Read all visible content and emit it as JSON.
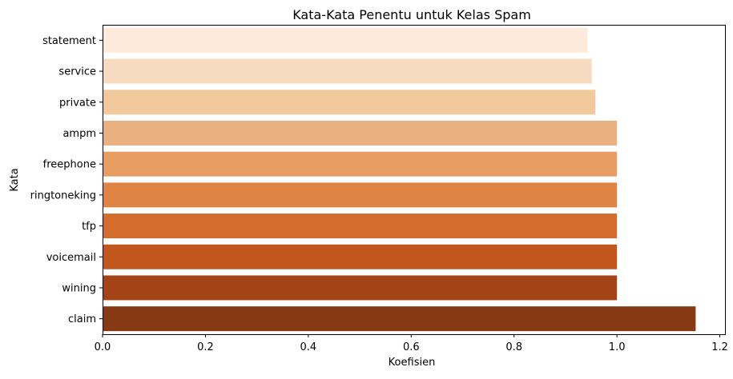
{
  "chart_data": {
    "type": "bar",
    "orientation": "horizontal",
    "title": "Kata-Kata Penentu untuk Kelas Spam",
    "xlabel": "Koefisien",
    "ylabel": "Kata",
    "categories": [
      "statement",
      "service",
      "private",
      "ampm",
      "freephone",
      "ringtoneking",
      "tfp",
      "voicemail",
      "wining",
      "claim"
    ],
    "values": [
      0.943,
      0.951,
      0.958,
      1.0,
      1.0,
      1.0,
      1.0,
      1.0,
      1.0,
      1.153
    ],
    "colors": [
      "#fdeadb",
      "#f6dbc1",
      "#f1c99d",
      "#ebb07f",
      "#e89d63",
      "#e08446",
      "#d46c2d",
      "#c2571e",
      "#a44316",
      "#873913"
    ],
    "xlim": [
      0,
      1.21
    ],
    "xticks": [
      0.0,
      0.2,
      0.4,
      0.6,
      0.8,
      1.0,
      1.2
    ],
    "xtick_labels": [
      "0.0",
      "0.2",
      "0.4",
      "0.6",
      "0.8",
      "1.0",
      "1.2"
    ],
    "grid": false,
    "legend": false
  }
}
